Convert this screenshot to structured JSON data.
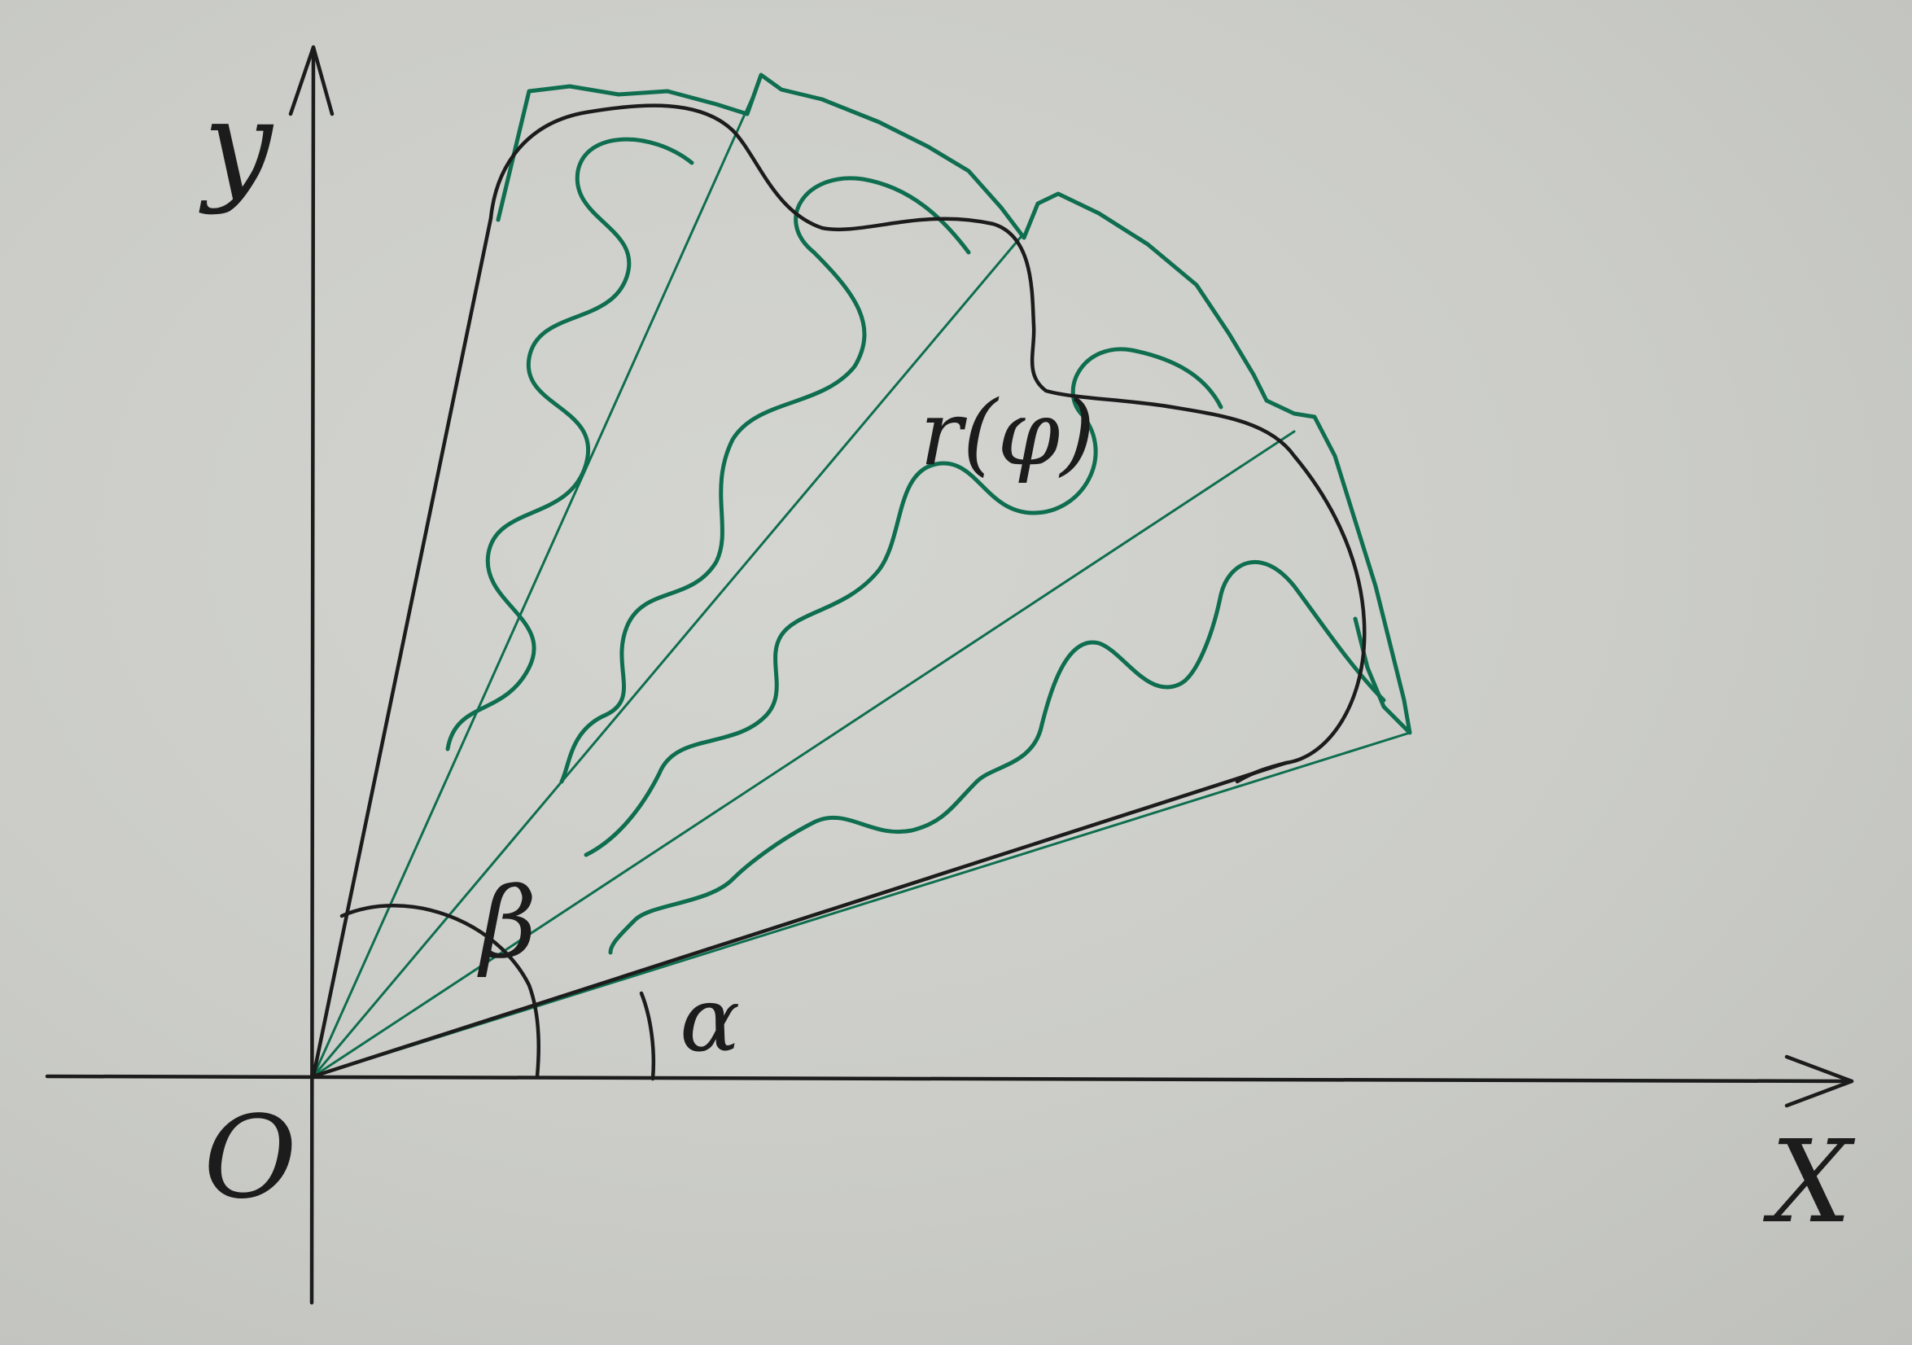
{
  "labels": {
    "y_axis": "y",
    "x_axis": "X",
    "origin": "O",
    "alpha": "α",
    "beta": "β",
    "curve": "r(φ)"
  },
  "colors": {
    "ink": "#1c1c1c",
    "sector_green": "#0f6e4f",
    "paper": "#cbccc8"
  }
}
